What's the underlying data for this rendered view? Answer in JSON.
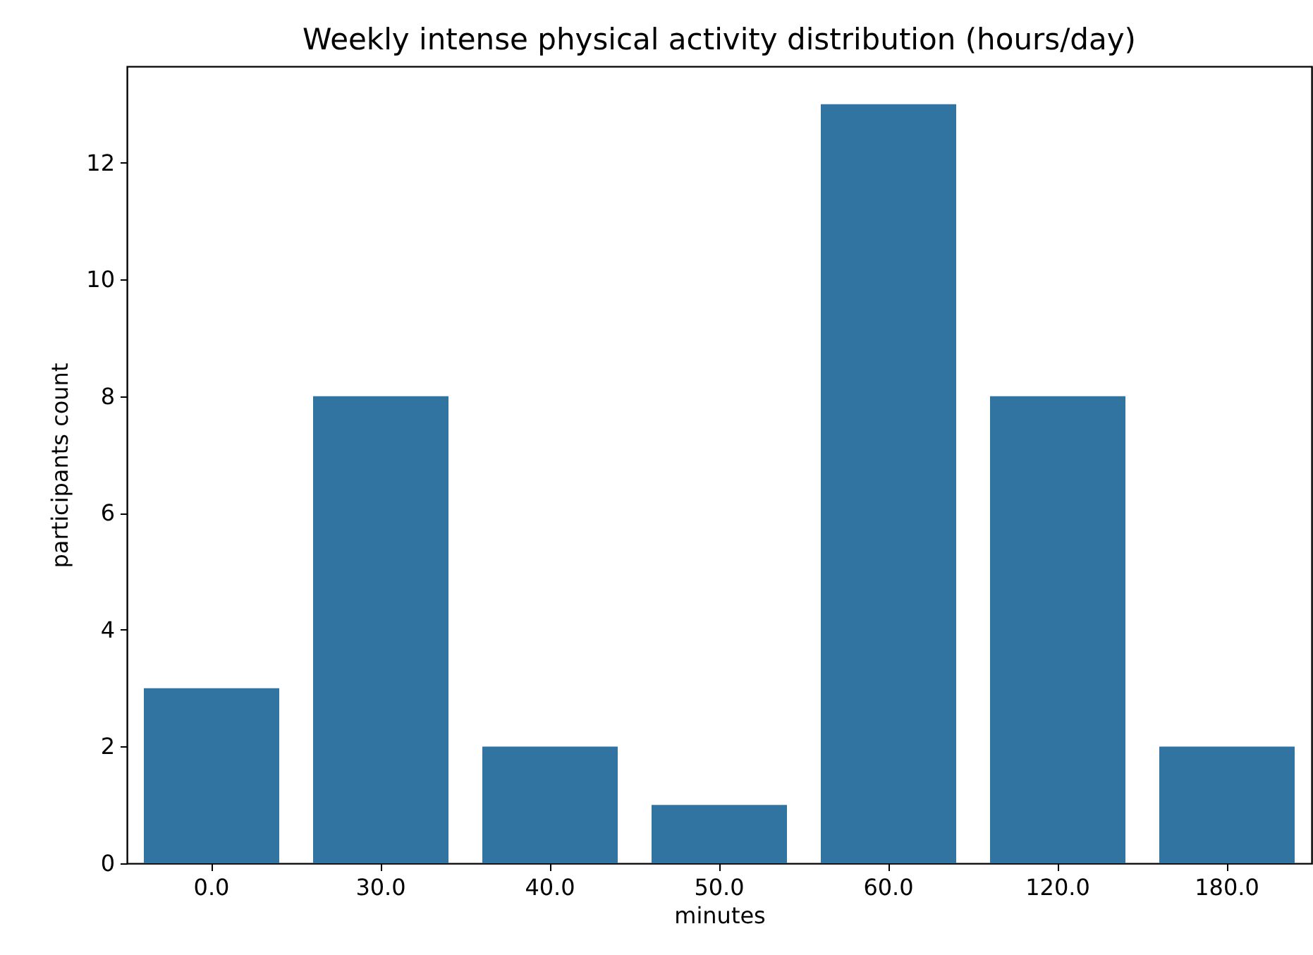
{
  "chart_data": {
    "type": "bar",
    "title": "Weekly intense physical activity distribution (hours/day)",
    "xlabel": "minutes",
    "ylabel": "participants count",
    "categories": [
      "0.0",
      "30.0",
      "40.0",
      "50.0",
      "60.0",
      "120.0",
      "180.0"
    ],
    "values": [
      3,
      8,
      2,
      1,
      13,
      8,
      2
    ],
    "color": "#3274a1",
    "ylim": [
      0,
      13.65
    ],
    "yticks": [
      0,
      2,
      4,
      6,
      8,
      10,
      12
    ],
    "grid": false
  }
}
